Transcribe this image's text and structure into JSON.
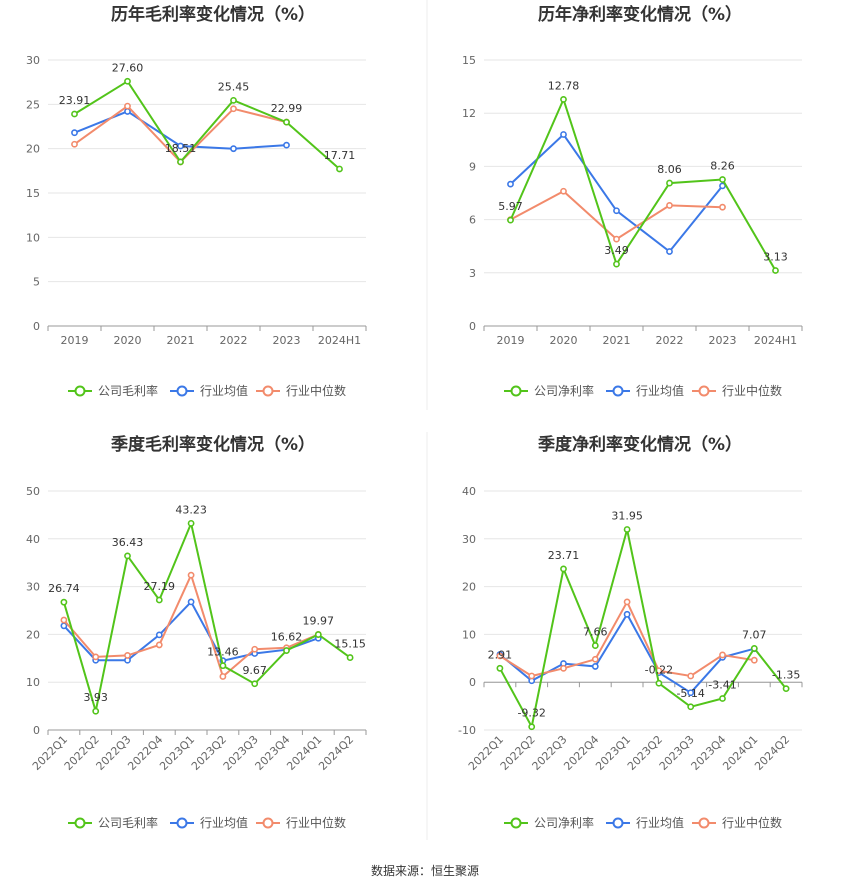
{
  "colors": {
    "company": "#52c41a",
    "industry_avg": "#3b78e7",
    "industry_median": "#f28b6c",
    "grid": "#e6e6e6",
    "axis": "#999999"
  },
  "source": "数据来源：恒生聚源",
  "chart_data": [
    {
      "type": "line",
      "title": "历年毛利率变化情况（%）",
      "categories": [
        "2019",
        "2020",
        "2021",
        "2022",
        "2023",
        "2024H1"
      ],
      "ylim": [
        0,
        30
      ],
      "yticks": [
        0,
        5,
        10,
        15,
        20,
        25,
        30
      ],
      "grid": true,
      "legend_position": "bottom",
      "series": [
        {
          "name": "公司毛利率",
          "role": "company",
          "values": [
            23.91,
            27.6,
            18.51,
            25.45,
            22.99,
            17.71
          ],
          "labels": [
            "23.91",
            "27.60",
            "18.51",
            "25.45",
            "22.99",
            "17.71"
          ]
        },
        {
          "name": "行业均值",
          "role": "industry_avg",
          "values": [
            21.8,
            24.2,
            20.3,
            20.0,
            20.4,
            null
          ]
        },
        {
          "name": "行业中位数",
          "role": "industry_median",
          "values": [
            20.5,
            24.8,
            18.5,
            24.5,
            23.0,
            null
          ]
        }
      ]
    },
    {
      "type": "line",
      "title": "历年净利率变化情况（%）",
      "categories": [
        "2019",
        "2020",
        "2021",
        "2022",
        "2023",
        "2024H1"
      ],
      "ylim": [
        0,
        15
      ],
      "yticks": [
        0,
        3,
        6,
        9,
        12,
        15
      ],
      "grid": true,
      "legend_position": "bottom",
      "series": [
        {
          "name": "公司净利率",
          "role": "company",
          "values": [
            5.97,
            12.78,
            3.49,
            8.06,
            8.26,
            3.13
          ],
          "labels": [
            "5.97",
            "12.78",
            "3.49",
            "8.06",
            "8.26",
            "3.13"
          ]
        },
        {
          "name": "行业均值",
          "role": "industry_avg",
          "values": [
            8.0,
            10.8,
            6.5,
            4.2,
            7.9,
            null
          ]
        },
        {
          "name": "行业中位数",
          "role": "industry_median",
          "values": [
            6.0,
            7.6,
            4.9,
            6.8,
            6.7,
            null
          ]
        }
      ]
    },
    {
      "type": "line",
      "title": "季度毛利率变化情况（%）",
      "categories": [
        "2022Q1",
        "2022Q2",
        "2022Q3",
        "2022Q4",
        "2023Q1",
        "2023Q2",
        "2023Q3",
        "2023Q4",
        "2024Q1",
        "2024Q2"
      ],
      "ylim": [
        0,
        50
      ],
      "yticks": [
        0,
        10,
        20,
        30,
        40,
        50
      ],
      "grid": true,
      "legend_position": "bottom",
      "series": [
        {
          "name": "公司毛利率",
          "role": "company",
          "values": [
            26.74,
            3.93,
            36.43,
            27.19,
            43.23,
            13.46,
            9.67,
            16.62,
            19.97,
            15.15
          ],
          "labels": [
            "26.74",
            "3.93",
            "36.43",
            "27.19",
            "43.23",
            "13.46",
            "9.67",
            "16.62",
            "19.97",
            "15.15"
          ]
        },
        {
          "name": "行业均值",
          "role": "industry_avg",
          "values": [
            21.8,
            14.6,
            14.6,
            19.9,
            26.8,
            14.5,
            16.0,
            16.8,
            19.2,
            null
          ]
        },
        {
          "name": "行业中位数",
          "role": "industry_median",
          "values": [
            23.0,
            15.3,
            15.6,
            17.8,
            32.4,
            11.2,
            16.9,
            17.2,
            20.0,
            null
          ]
        }
      ]
    },
    {
      "type": "line",
      "title": "季度净利率变化情况（%）",
      "categories": [
        "2022Q1",
        "2022Q2",
        "2022Q3",
        "2022Q4",
        "2023Q1",
        "2023Q2",
        "2023Q3",
        "2023Q4",
        "2024Q1",
        "2024Q2"
      ],
      "ylim": [
        -10,
        40
      ],
      "yticks": [
        -10,
        0,
        10,
        20,
        30,
        40
      ],
      "grid": true,
      "legend_position": "bottom",
      "series": [
        {
          "name": "公司净利率",
          "role": "company",
          "values": [
            2.91,
            -9.32,
            23.71,
            7.66,
            31.95,
            -0.22,
            -5.14,
            -3.41,
            7.07,
            -1.35
          ],
          "labels": [
            "2.91",
            "-9.32",
            "23.71",
            "7.66",
            "31.95",
            "-0.22",
            "-5.14",
            "-3.41",
            "7.07",
            "-1.35"
          ]
        },
        {
          "name": "行业均值",
          "role": "industry_avg",
          "values": [
            5.8,
            0.3,
            3.9,
            3.3,
            14.2,
            2.0,
            -2.2,
            5.2,
            7.0,
            null
          ]
        },
        {
          "name": "行业中位数",
          "role": "industry_median",
          "values": [
            5.5,
            1.3,
            2.9,
            4.8,
            16.8,
            2.4,
            1.3,
            5.7,
            4.6,
            null
          ]
        }
      ]
    }
  ]
}
